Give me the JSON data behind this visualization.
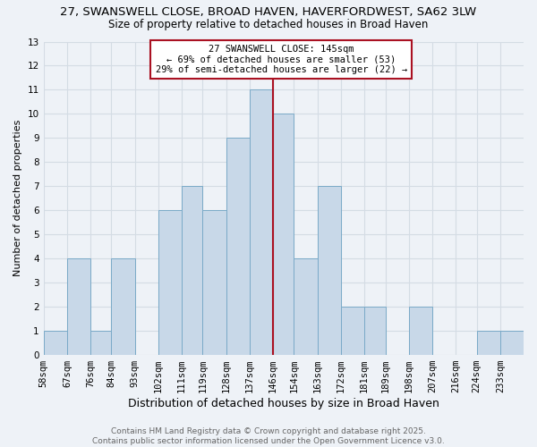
{
  "title": "27, SWANSWELL CLOSE, BROAD HAVEN, HAVERFORDWEST, SA62 3LW",
  "subtitle": "Size of property relative to detached houses in Broad Haven",
  "xlabel": "Distribution of detached houses by size in Broad Haven",
  "ylabel": "Number of detached properties",
  "bin_labels": [
    "58sqm",
    "67sqm",
    "76sqm",
    "84sqm",
    "93sqm",
    "102sqm",
    "111sqm",
    "119sqm",
    "128sqm",
    "137sqm",
    "146sqm",
    "154sqm",
    "163sqm",
    "172sqm",
    "181sqm",
    "189sqm",
    "198sqm",
    "207sqm",
    "216sqm",
    "224sqm",
    "233sqm"
  ],
  "bin_edges": [
    58,
    67,
    76,
    84,
    93,
    102,
    111,
    119,
    128,
    137,
    146,
    154,
    163,
    172,
    181,
    189,
    198,
    207,
    216,
    224,
    233
  ],
  "counts": [
    1,
    4,
    1,
    4,
    0,
    6,
    7,
    6,
    9,
    11,
    10,
    4,
    7,
    2,
    2,
    0,
    2,
    0,
    0,
    1,
    1
  ],
  "bar_color": "#c8d8e8",
  "bar_edge_color": "#7aaac8",
  "vline_x": 146,
  "vline_color": "#aa1122",
  "annotation_line1": "27 SWANSWELL CLOSE: 145sqm",
  "annotation_line2": "← 69% of detached houses are smaller (53)",
  "annotation_line3": "29% of semi-detached houses are larger (22) →",
  "annotation_box_color": "#ffffff",
  "annotation_box_edge_color": "#aa1122",
  "ylim": [
    0,
    13
  ],
  "yticks": [
    0,
    1,
    2,
    3,
    4,
    5,
    6,
    7,
    8,
    9,
    10,
    11,
    12,
    13
  ],
  "grid_color": "#d4dce4",
  "background_color": "#eef2f7",
  "footer_text": "Contains HM Land Registry data © Crown copyright and database right 2025.\nContains public sector information licensed under the Open Government Licence v3.0.",
  "title_fontsize": 9.5,
  "subtitle_fontsize": 8.5,
  "xlabel_fontsize": 9,
  "ylabel_fontsize": 8,
  "tick_fontsize": 7.5,
  "annotation_fontsize": 7.5,
  "footer_fontsize": 6.5
}
